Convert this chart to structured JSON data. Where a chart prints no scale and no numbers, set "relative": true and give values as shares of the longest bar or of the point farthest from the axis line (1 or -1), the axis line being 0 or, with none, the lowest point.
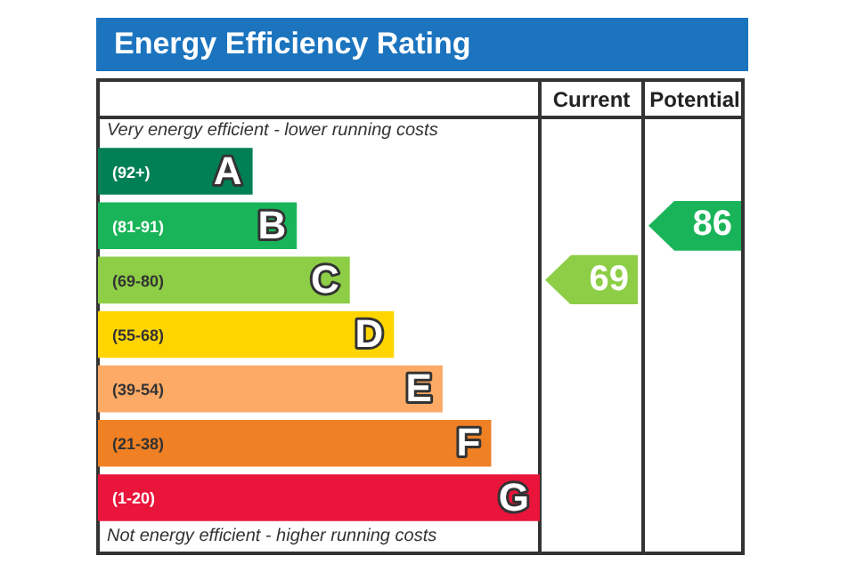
{
  "chart_data": [
    {
      "type": "bar",
      "orientation": "horizontal",
      "relative": true,
      "title": "Energy Efficiency Rating",
      "categories": [
        "A",
        "B",
        "C",
        "D",
        "E",
        "F",
        "G"
      ],
      "values": [
        0.35,
        0.45,
        0.57,
        0.67,
        0.78,
        0.89,
        1
      ],
      "colors": [
        "#008054",
        "#19b459",
        "#8dce46",
        "#ffd500",
        "#fcaa65",
        "#ef8023",
        "#e9153b"
      ],
      "legend": false,
      "annotations": [
        "Very energy efficient - lower running costs",
        "Not energy efficient - higher running costs",
        "(92+)",
        "(81-91)",
        "(69-80)",
        "(55-68)",
        "(39-54)",
        "(21-38)",
        "(1-20)"
      ]
    },
    {
      "type": "other",
      "categories": [
        "Current",
        "Potential"
      ],
      "annotations": [
        {
          "text": "69",
          "x": "Current",
          "y": "C"
        },
        {
          "text": "86",
          "x": "Potential",
          "y": "B"
        }
      ]
    }
  ]
}
